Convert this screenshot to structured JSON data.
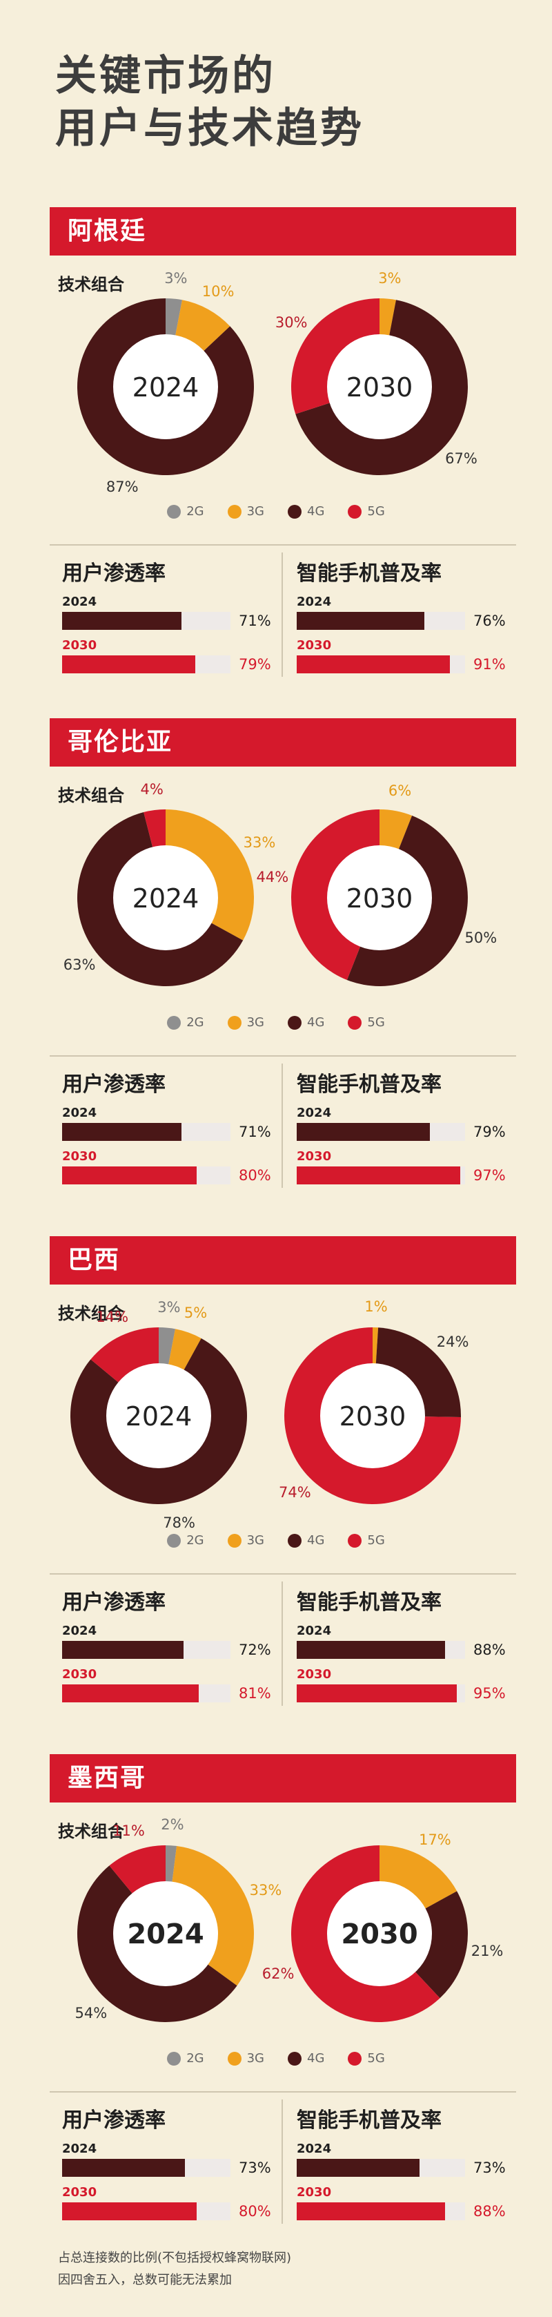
{
  "title": [
    "关键市场的",
    "用户与技术趋势"
  ],
  "colors": {
    "2G": "#8f8f8f",
    "3G": "#f0a01d",
    "4G": "#4a1717",
    "5G": "#d5192c",
    "accent": "#d5192c",
    "track": "#eeeae8"
  },
  "tech_mix_label": "技术组合",
  "user_label": "用户渗透率",
  "smart_label": "智能手机普及率",
  "footnote": [
    "占总连接数的比例(不包括授权蜂窝物联网)",
    "因四舍五入，总数可能无法累加"
  ],
  "chart_data": [
    {
      "type": "pie",
      "country": "阿根廷",
      "legend": [
        "2G",
        "3G",
        "4G",
        "5G"
      ],
      "donuts": [
        {
          "year": "2024",
          "slices": [
            {
              "tech": "2G",
              "value": 3
            },
            {
              "tech": "3G",
              "value": 10
            },
            {
              "tech": "4G",
              "value": 87
            },
            {
              "tech": "5G",
              "value": 0
            }
          ]
        },
        {
          "year": "2030",
          "slices": [
            {
              "tech": "2G",
              "value": 0
            },
            {
              "tech": "3G",
              "value": 3
            },
            {
              "tech": "4G",
              "value": 67
            },
            {
              "tech": "5G",
              "value": 30
            }
          ]
        }
      ],
      "user": [
        {
          "year": "2024",
          "value": 71
        },
        {
          "year": "2030",
          "value": 79
        }
      ],
      "smart": [
        {
          "year": "2024",
          "value": 76
        },
        {
          "year": "2030",
          "value": 91
        }
      ]
    },
    {
      "type": "pie",
      "country": "哥伦比亚",
      "legend": [
        "2G",
        "3G",
        "4G",
        "5G"
      ],
      "donuts": [
        {
          "year": "2024",
          "slices": [
            {
              "tech": "2G",
              "value": 0
            },
            {
              "tech": "3G",
              "value": 33
            },
            {
              "tech": "4G",
              "value": 63
            },
            {
              "tech": "5G",
              "value": 4
            }
          ]
        },
        {
          "year": "2030",
          "slices": [
            {
              "tech": "2G",
              "value": 0
            },
            {
              "tech": "3G",
              "value": 6
            },
            {
              "tech": "4G",
              "value": 50
            },
            {
              "tech": "5G",
              "value": 44
            }
          ]
        }
      ],
      "user": [
        {
          "year": "2024",
          "value": 71
        },
        {
          "year": "2030",
          "value": 80
        }
      ],
      "smart": [
        {
          "year": "2024",
          "value": 79
        },
        {
          "year": "2030",
          "value": 97
        }
      ]
    },
    {
      "type": "pie",
      "country": "巴西",
      "legend": [
        "2G",
        "3G",
        "4G",
        "5G"
      ],
      "donuts": [
        {
          "year": "2024",
          "slices": [
            {
              "tech": "2G",
              "value": 3
            },
            {
              "tech": "3G",
              "value": 5
            },
            {
              "tech": "4G",
              "value": 78
            },
            {
              "tech": "5G",
              "value": 14
            }
          ]
        },
        {
          "year": "2030",
          "slices": [
            {
              "tech": "2G",
              "value": 0
            },
            {
              "tech": "3G",
              "value": 1
            },
            {
              "tech": "4G",
              "value": 24
            },
            {
              "tech": "5G",
              "value": 74
            }
          ]
        }
      ],
      "user": [
        {
          "year": "2024",
          "value": 72
        },
        {
          "year": "2030",
          "value": 81
        }
      ],
      "smart": [
        {
          "year": "2024",
          "value": 88
        },
        {
          "year": "2030",
          "value": 95
        }
      ]
    },
    {
      "type": "pie",
      "country": "墨西哥",
      "legend": [
        "2G",
        "3G",
        "4G",
        "5G"
      ],
      "donuts": [
        {
          "year": "2024",
          "slices": [
            {
              "tech": "2G",
              "value": 2
            },
            {
              "tech": "3G",
              "value": 33
            },
            {
              "tech": "4G",
              "value": 54
            },
            {
              "tech": "5G",
              "value": 11
            }
          ]
        },
        {
          "year": "2030",
          "slices": [
            {
              "tech": "2G",
              "value": 0
            },
            {
              "tech": "3G",
              "value": 17
            },
            {
              "tech": "4G",
              "value": 21
            },
            {
              "tech": "5G",
              "value": 62
            }
          ]
        }
      ],
      "user": [
        {
          "year": "2024",
          "value": 73
        },
        {
          "year": "2030",
          "value": 80
        }
      ],
      "smart": [
        {
          "year": "2024",
          "value": 73
        },
        {
          "year": "2030",
          "value": 88
        }
      ]
    }
  ]
}
